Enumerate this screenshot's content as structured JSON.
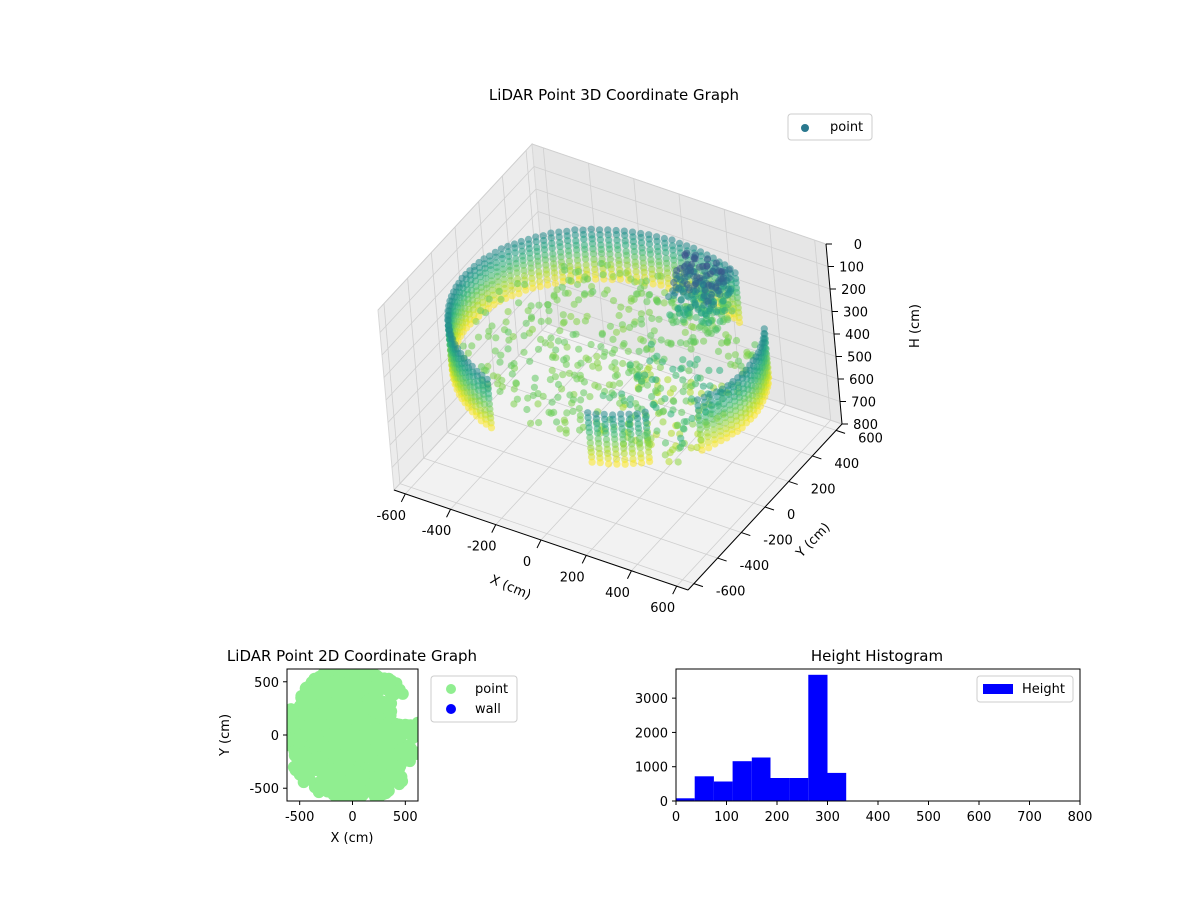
{
  "figure": {
    "background": "#ffffff"
  },
  "chart_data": [
    {
      "id": "lidar3d",
      "type": "scatter",
      "title": "LiDAR Point 3D Coordinate Graph",
      "xlabel": "X (cm)",
      "ylabel": "Y (cm)",
      "zlabel": "H (cm)",
      "xlim": [
        -650,
        650
      ],
      "ylim": [
        -650,
        650
      ],
      "zlim": [
        800,
        0
      ],
      "xticks": [
        -600,
        -400,
        -200,
        0,
        200,
        400,
        600
      ],
      "yticks": [
        -600,
        -400,
        -200,
        0,
        200,
        400,
        600
      ],
      "zticks": [
        0,
        100,
        200,
        300,
        400,
        500,
        600,
        700,
        800
      ],
      "legend": [
        "point"
      ],
      "legend_position": "top-right",
      "colormap": "viridis",
      "legend_color": "#2a788e",
      "grid": true,
      "structure": {
        "wall_radius_cm": 620,
        "wall_height_range_cm": [
          200,
          440
        ],
        "wall_gaps_deg": [
          [
            -45,
            -30
          ],
          [
            -108,
            -72
          ],
          [
            30,
            60
          ]
        ],
        "floor_height_cm": 330,
        "cluster_center_cm": [
          220,
          380
        ],
        "cluster_height_range_cm": [
          100,
          330
        ]
      }
    },
    {
      "id": "lidar2d",
      "type": "scatter",
      "title": "LiDAR Point 2D Coordinate Graph",
      "xlabel": "X (cm)",
      "ylabel": "Y (cm)",
      "xlim": [
        -620,
        620
      ],
      "ylim": [
        -620,
        620
      ],
      "xticks": [
        -500,
        0,
        500
      ],
      "yticks": [
        -500,
        0,
        500
      ],
      "series": [
        {
          "name": "point",
          "color": "#90ee90"
        },
        {
          "name": "wall",
          "color": "#0000ff"
        }
      ],
      "legend_position": "outside-right"
    },
    {
      "id": "hist",
      "type": "bar",
      "title": "Height Histogram",
      "xlim": [
        0,
        800
      ],
      "ylim": [
        0,
        3850
      ],
      "xticks": [
        0,
        100,
        200,
        300,
        400,
        500,
        600,
        700,
        800
      ],
      "yticks": [
        0,
        1000,
        2000,
        3000
      ],
      "bin_edges": [
        0,
        37,
        75,
        112,
        150,
        187,
        225,
        262,
        300,
        337
      ],
      "counts": [
        80,
        720,
        570,
        1160,
        1270,
        670,
        670,
        3680,
        820
      ],
      "legend": [
        "Height"
      ],
      "legend_position": "top-right",
      "color": "#0000ff"
    }
  ]
}
